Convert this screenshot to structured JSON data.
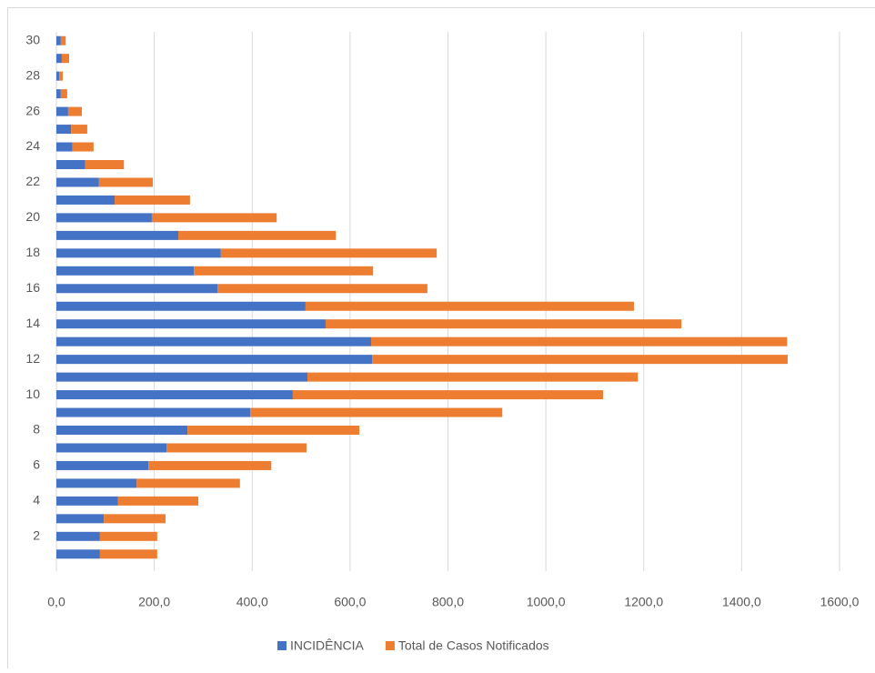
{
  "chart_data": {
    "type": "stacked-barh",
    "categories": [
      null,
      "2",
      null,
      "4",
      null,
      "6",
      null,
      "8",
      null,
      "10",
      null,
      "12",
      null,
      "14",
      null,
      "16",
      null,
      "18",
      null,
      "20",
      null,
      "22",
      null,
      "24",
      null,
      "26",
      null,
      "28",
      null,
      "30"
    ],
    "series": [
      {
        "name": "INCIDÊNCIA",
        "color": "#4472c4",
        "values": [
          89,
          89,
          97,
          126,
          164,
          188,
          225,
          268,
          396,
          483,
          513,
          645,
          643,
          550,
          509,
          329,
          281,
          336,
          249,
          195,
          119,
          87,
          59,
          33,
          30,
          24,
          9,
          6,
          11,
          9
        ]
      },
      {
        "name": "Total de Casos Notificados",
        "color": "#ed7d31",
        "values": [
          117,
          117,
          126,
          164,
          211,
          251,
          286,
          351,
          515,
          634,
          675,
          849,
          850,
          727,
          671,
          429,
          366,
          441,
          322,
          255,
          154,
          110,
          79,
          43,
          33,
          28,
          13,
          7,
          15,
          10
        ]
      }
    ],
    "xlim": [
      0,
      1600
    ],
    "xticks": [
      {
        "value": 0,
        "label": "0,0"
      },
      {
        "value": 200,
        "label": "200,0"
      },
      {
        "value": 400,
        "label": "400,0"
      },
      {
        "value": 600,
        "label": "600,0"
      },
      {
        "value": 800,
        "label": "800,0"
      },
      {
        "value": 1000,
        "label": "1000,0"
      },
      {
        "value": 1200,
        "label": "1200,0"
      },
      {
        "value": 1400,
        "label": "1400,0"
      },
      {
        "value": 1600,
        "label": "1600,0"
      }
    ],
    "grid": true,
    "legend": "bottom"
  }
}
